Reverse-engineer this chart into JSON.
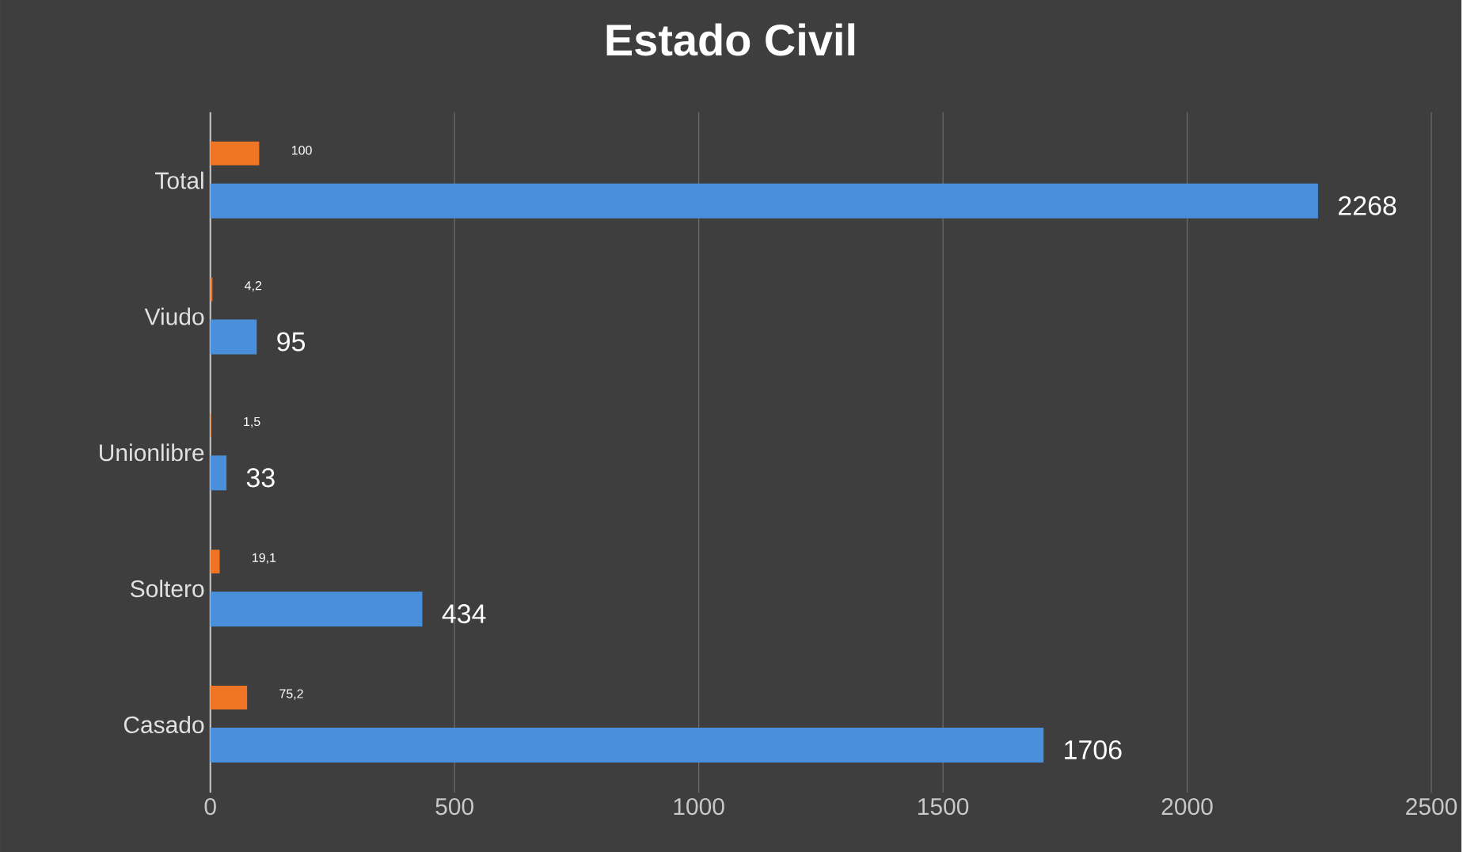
{
  "chart_data": {
    "type": "bar",
    "orientation": "horizontal",
    "title": "Estado  Civil",
    "categories": [
      "Total",
      "Viudo",
      "Unionlibre",
      "Soltero",
      "Casado"
    ],
    "series": [
      {
        "color": "#4a8fdb",
        "values": [
          2268,
          95,
          33,
          434,
          1706
        ],
        "value_labels": [
          "2268",
          "95",
          "33",
          "434",
          "1706"
        ]
      },
      {
        "color": "#ef7424",
        "values": [
          100,
          4.2,
          1.5,
          19.1,
          75.2
        ],
        "value_labels": [
          "100",
          "4,2",
          "1,5",
          "19,1",
          "75,2"
        ]
      }
    ],
    "xlim": [
      0,
      2500
    ],
    "xticks": [
      0,
      500,
      1000,
      1500,
      2000,
      2500
    ],
    "grid": "x"
  }
}
